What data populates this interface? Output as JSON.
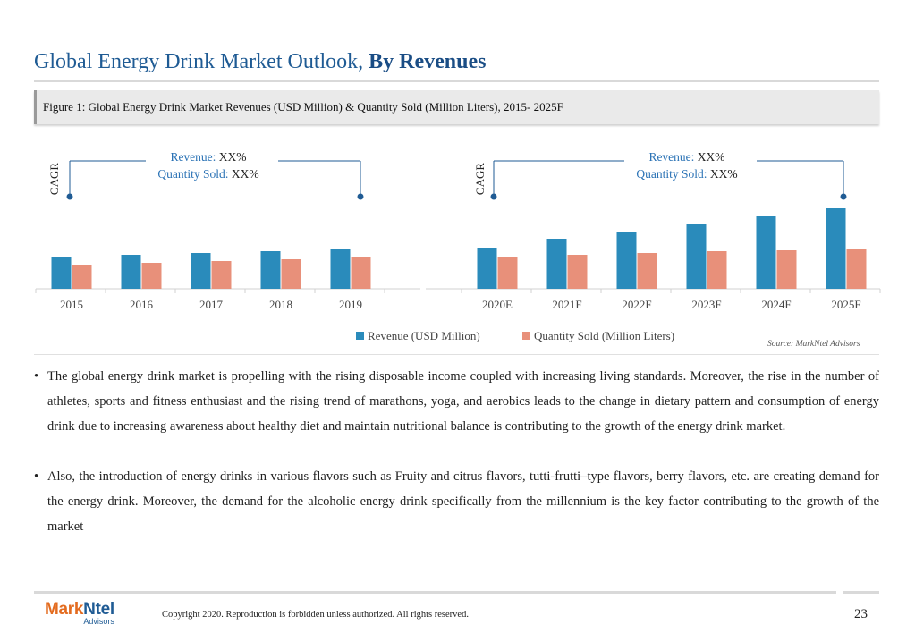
{
  "header": {
    "title_regular": "Global Energy Drink Market Outlook, ",
    "title_bold": "By Revenues"
  },
  "figure": {
    "caption": "Figure 1: Global Energy Drink Market Revenues (USD Million) & Quantity Sold (Million Liters), 2015- 2025F"
  },
  "chart_data": {
    "type": "bar",
    "categories": [
      "2015",
      "2016",
      "2017",
      "2018",
      "2019",
      "2020E",
      "2021F",
      "2022F",
      "2023F",
      "2024F",
      "2025F"
    ],
    "series": [
      {
        "name": "Revenue (USD Million)",
        "color": "#2a8bbb",
        "values": [
          36,
          38,
          40,
          42,
          44,
          46,
          56,
          64,
          72,
          81,
          90
        ]
      },
      {
        "name": "Quantity Sold (Million Liters)",
        "color": "#e8907a",
        "values": [
          27,
          29,
          31,
          33,
          35,
          36,
          38,
          40,
          42,
          43,
          44
        ]
      }
    ],
    "legend_position": "bottom",
    "gridlines": false,
    "annotations": [
      {
        "axis_label": "CAGR",
        "revenue_key": "Revenue:",
        "revenue_value": "XX%",
        "quantity_key": "Quantity Sold:",
        "quantity_value": "XX%"
      },
      {
        "axis_label": "CAGR",
        "revenue_key": "Revenue:",
        "revenue_value": "XX%",
        "quantity_key": "Quantity Sold:",
        "quantity_value": "XX%"
      }
    ]
  },
  "source": "Source: MarkNtel Advisors",
  "bullets": [
    "The global energy drink market is propelling with the rising disposable income coupled with increasing living standards. Moreover, the rise in the number of athletes, sports and fitness enthusiast and the rising trend of marathons, yoga, and aerobics leads to the change in dietary pattern and consumption of energy drink due to increasing awareness about healthy diet and maintain nutritional balance is contributing to the growth of the energy drink market.",
    "Also, the introduction of energy drinks in various flavors such as Fruity and citrus flavors, tutti-frutti–type flavors, berry flavors, etc. are creating demand for the energy drink. Moreover, the demand for the alcoholic energy drink specifically from the millennium is the key factor contributing to the growth of the market"
  ],
  "footer": {
    "logo_mark": "Mark",
    "logo_ntel": "Ntel",
    "logo_sub": "Advisors",
    "copyright": "Copyright 2020. Reproduction is forbidden unless authorized. All rights reserved.",
    "page_number": "23"
  }
}
